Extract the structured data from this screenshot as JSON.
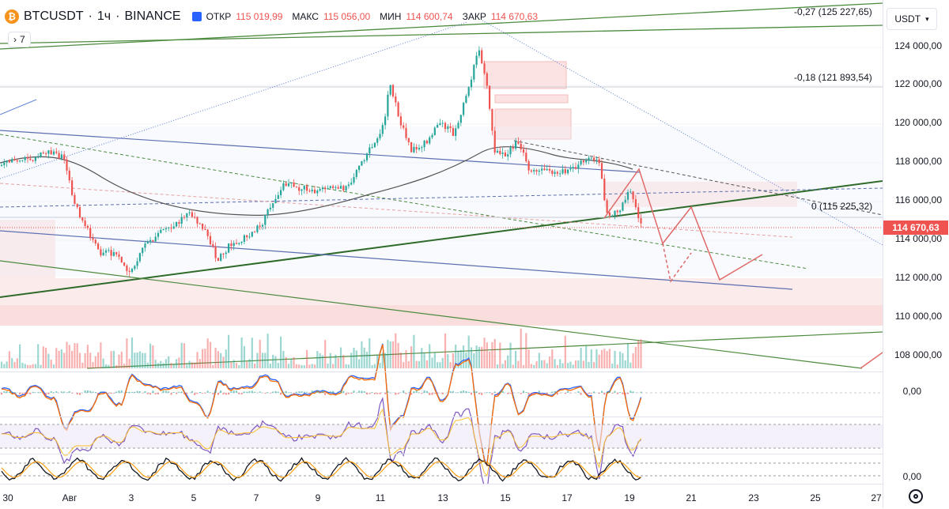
{
  "header": {
    "symbol": "BTCUSDT",
    "interval": "1ч",
    "exchange": "BINANCE",
    "separator": "·",
    "open_label": "ОТКР",
    "open_value": "115 019,99",
    "high_label": "МАКС",
    "high_value": "115 056,00",
    "low_label": "МИН",
    "low_value": "114 600,74",
    "close_label": "ЗАКР",
    "close_value": "114 670,63",
    "indicator_count": "7"
  },
  "currency": "USDT",
  "price_axis": [
    "124 000,00",
    "122 000,00",
    "120 000,00",
    "118 000,00",
    "116 000,00",
    "114 000,00",
    "112 000,00",
    "110 000,00",
    "108 000,00"
  ],
  "current_price": "114 670,63",
  "fib_levels": [
    {
      "label": "-0,27 (125 227,65)"
    },
    {
      "label": "-0,18 (121 893,54)"
    },
    {
      "label": "0 (115 225,32)"
    }
  ],
  "indicator_axis": [
    "0,00",
    "0,00"
  ],
  "time_axis": [
    "30",
    "Авг",
    "3",
    "5",
    "7",
    "9",
    "11",
    "13",
    "15",
    "17",
    "19",
    "21",
    "23",
    "25",
    "27"
  ],
  "colors": {
    "up": "#26a69a",
    "down": "#ef5350",
    "accent": "#2962ff"
  }
}
